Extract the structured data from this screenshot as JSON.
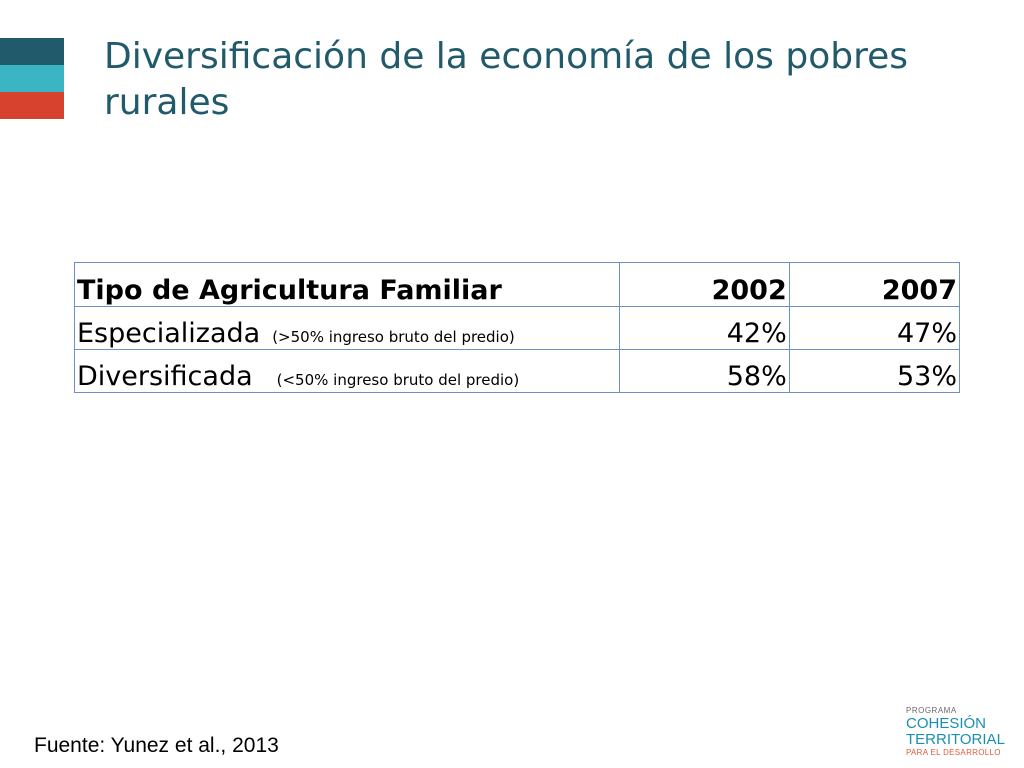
{
  "slide": {
    "title": "Diversificación de la economía de los pobres rurales",
    "source": "Fuente: Yunez et al., 2013"
  },
  "table": {
    "headers": [
      "Tipo de Agricultura Familiar",
      "2002",
      "2007"
    ],
    "rows": [
      {
        "type": "Especializada",
        "note": "(>50% ingreso bruto del predio)",
        "y2002": "42%",
        "y2007": "47%"
      },
      {
        "type": "Diversificada",
        "note": "(<50% ingreso bruto del predio)",
        "y2002": "58%",
        "y2007": "53%"
      }
    ]
  },
  "logo": {
    "line1": "PROGRAMA",
    "line2": "COHESIÓN",
    "line3": "TERRITORIAL",
    "line4": "PARA EL DESARROLLO"
  },
  "colors": {
    "title": "#215a6a",
    "bar_dark": "#215a6a",
    "bar_teal": "#3bb5c3",
    "bar_red": "#d7422e",
    "table_border": "#6f8fc8"
  }
}
